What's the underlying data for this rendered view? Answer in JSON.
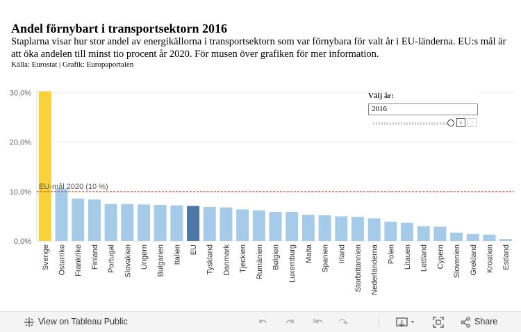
{
  "header": {
    "title": "Andel förnybart i transportsektorn 2016",
    "description": "Staplarna visar hur stor andel av energikällorna i transportsektorn som var förnybara för valt år i EU-länderna. EU:s mål är att öka andelen till minst tio procent år 2020. För musen över grafiken för mer information.",
    "source": "Källa: Eurostat | Grafik: Europaportalen"
  },
  "chart_data": {
    "type": "bar",
    "title": "Andel förnybart i transportsektorn 2016",
    "xlabel": "",
    "ylabel": "",
    "ylim": [
      0,
      30.5
    ],
    "yticks": [
      0,
      10,
      20,
      30
    ],
    "ytick_labels": [
      "0,0%",
      "10,0%",
      "20,0%",
      "30,0%"
    ],
    "categories": [
      "Sverige",
      "Österrike",
      "Frankrike",
      "Finland",
      "Portugal",
      "Slovakien",
      "Ungern",
      "Bulgarien",
      "Italien",
      "EU",
      "Tyskland",
      "Danmark",
      "Tjeckien",
      "Rumänien",
      "Belgien",
      "Luxemburg",
      "Malta",
      "Spanien",
      "Irland",
      "Storbritannien",
      "Nederländerna",
      "Polen",
      "Litauen",
      "Lettland",
      "Cypern",
      "Slovenien",
      "Grekland",
      "Kroatien",
      "Estland"
    ],
    "values": [
      30.3,
      10.6,
      8.6,
      8.4,
      7.5,
      7.5,
      7.4,
      7.3,
      7.2,
      7.1,
      6.9,
      6.8,
      6.4,
      6.2,
      5.9,
      5.9,
      5.3,
      5.2,
      5.0,
      4.9,
      4.6,
      3.9,
      3.7,
      3.0,
      2.9,
      1.7,
      1.4,
      1.3,
      0.4
    ],
    "bar_colors": [
      "#f8d13b",
      "#a6cbe9",
      "#a6cbe9",
      "#a6cbe9",
      "#a6cbe9",
      "#a6cbe9",
      "#a6cbe9",
      "#a6cbe9",
      "#a6cbe9",
      "#4d78a6",
      "#a6cbe9",
      "#a6cbe9",
      "#a6cbe9",
      "#a6cbe9",
      "#a6cbe9",
      "#a6cbe9",
      "#a6cbe9",
      "#a6cbe9",
      "#a6cbe9",
      "#a6cbe9",
      "#a6cbe9",
      "#a6cbe9",
      "#a6cbe9",
      "#a6cbe9",
      "#a6cbe9",
      "#a6cbe9",
      "#a6cbe9",
      "#a6cbe9",
      "#a6cbe9"
    ],
    "reference_line": {
      "value": 10,
      "label": "EU-mål 2020 (10 %)",
      "color": "#c0392b"
    },
    "grid": true
  },
  "year_filter": {
    "label": "Välj år:",
    "value": "2016"
  },
  "footer": {
    "view_label": "View on Tableau Public",
    "share_label": "Share"
  }
}
